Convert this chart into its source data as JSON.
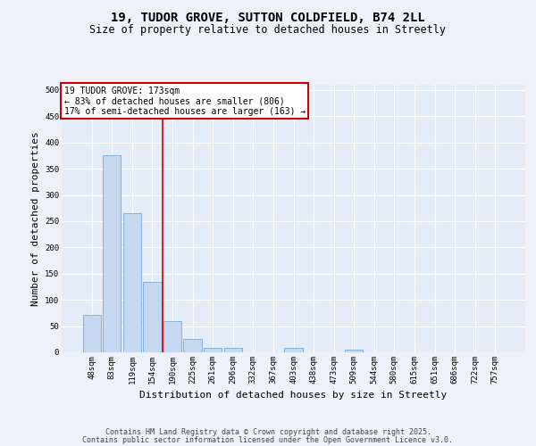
{
  "title": "19, TUDOR GROVE, SUTTON COLDFIELD, B74 2LL",
  "subtitle": "Size of property relative to detached houses in Streetly",
  "xlabel": "Distribution of detached houses by size in Streetly",
  "ylabel": "Number of detached properties",
  "categories": [
    "48sqm",
    "83sqm",
    "119sqm",
    "154sqm",
    "190sqm",
    "225sqm",
    "261sqm",
    "296sqm",
    "332sqm",
    "367sqm",
    "403sqm",
    "438sqm",
    "473sqm",
    "509sqm",
    "544sqm",
    "580sqm",
    "615sqm",
    "651sqm",
    "686sqm",
    "722sqm",
    "757sqm"
  ],
  "values": [
    72,
    375,
    265,
    135,
    60,
    25,
    9,
    9,
    0,
    0,
    9,
    0,
    0,
    5,
    0,
    0,
    0,
    0,
    0,
    0,
    0
  ],
  "bar_color": "#c5d8f0",
  "bar_edge_color": "#7aaad0",
  "vline_color": "#cc0000",
  "annotation_box_text": "19 TUDOR GROVE: 173sqm\n← 83% of detached houses are smaller (806)\n17% of semi-detached houses are larger (163) →",
  "annotation_box_color": "#cc0000",
  "annotation_bg": "#ffffff",
  "ylim": [
    0,
    510
  ],
  "yticks": [
    0,
    50,
    100,
    150,
    200,
    250,
    300,
    350,
    400,
    450,
    500
  ],
  "footer1": "Contains HM Land Registry data © Crown copyright and database right 2025.",
  "footer2": "Contains public sector information licensed under the Open Government Licence v3.0.",
  "background_color": "#eef2f8",
  "plot_bg": "#e4ecf7",
  "grid_color": "#ffffff",
  "title_fontsize": 10,
  "subtitle_fontsize": 8.5,
  "tick_fontsize": 6.5,
  "label_fontsize": 8,
  "annotation_fontsize": 7,
  "footer_fontsize": 6
}
